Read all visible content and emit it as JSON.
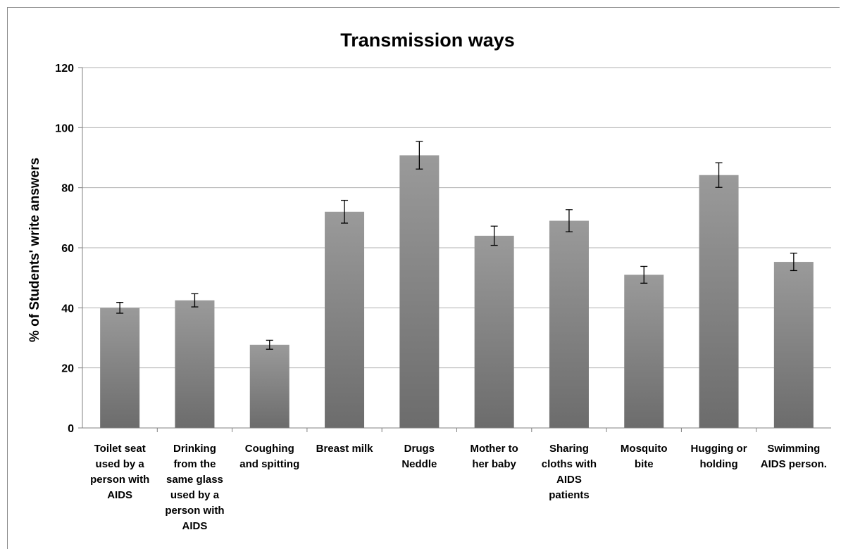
{
  "chart_data": {
    "type": "bar",
    "title": "Transmission ways",
    "xlabel": "",
    "ylabel": "% of Students' write answers",
    "ylim": [
      0,
      120
    ],
    "yticks": [
      0,
      20,
      40,
      60,
      80,
      100,
      120
    ],
    "grid": true,
    "legend": "none",
    "bar_color": "#808080",
    "categories": [
      [
        "Toilet seat",
        "used by a",
        "person with",
        "AIDS"
      ],
      [
        "Drinking",
        "from the",
        "same glass",
        "used by a",
        "person with",
        "AIDS"
      ],
      [
        "Coughing",
        "and spitting"
      ],
      [
        "Breast milk"
      ],
      [
        "Drugs",
        "Neddle"
      ],
      [
        "Mother to",
        "her baby"
      ],
      [
        "Sharing",
        "cloths with",
        "AIDS",
        "patients"
      ],
      [
        "Mosquito",
        "bite"
      ],
      [
        "Hugging or",
        "holding"
      ],
      [
        "Swimming",
        "AIDS person."
      ]
    ],
    "values": [
      40,
      42.5,
      27.7,
      72,
      90.8,
      64,
      69,
      51,
      84.2,
      55.3
    ],
    "error": [
      1.8,
      2.2,
      1.5,
      3.8,
      4.6,
      3.2,
      3.7,
      2.8,
      4.1,
      2.9
    ]
  }
}
